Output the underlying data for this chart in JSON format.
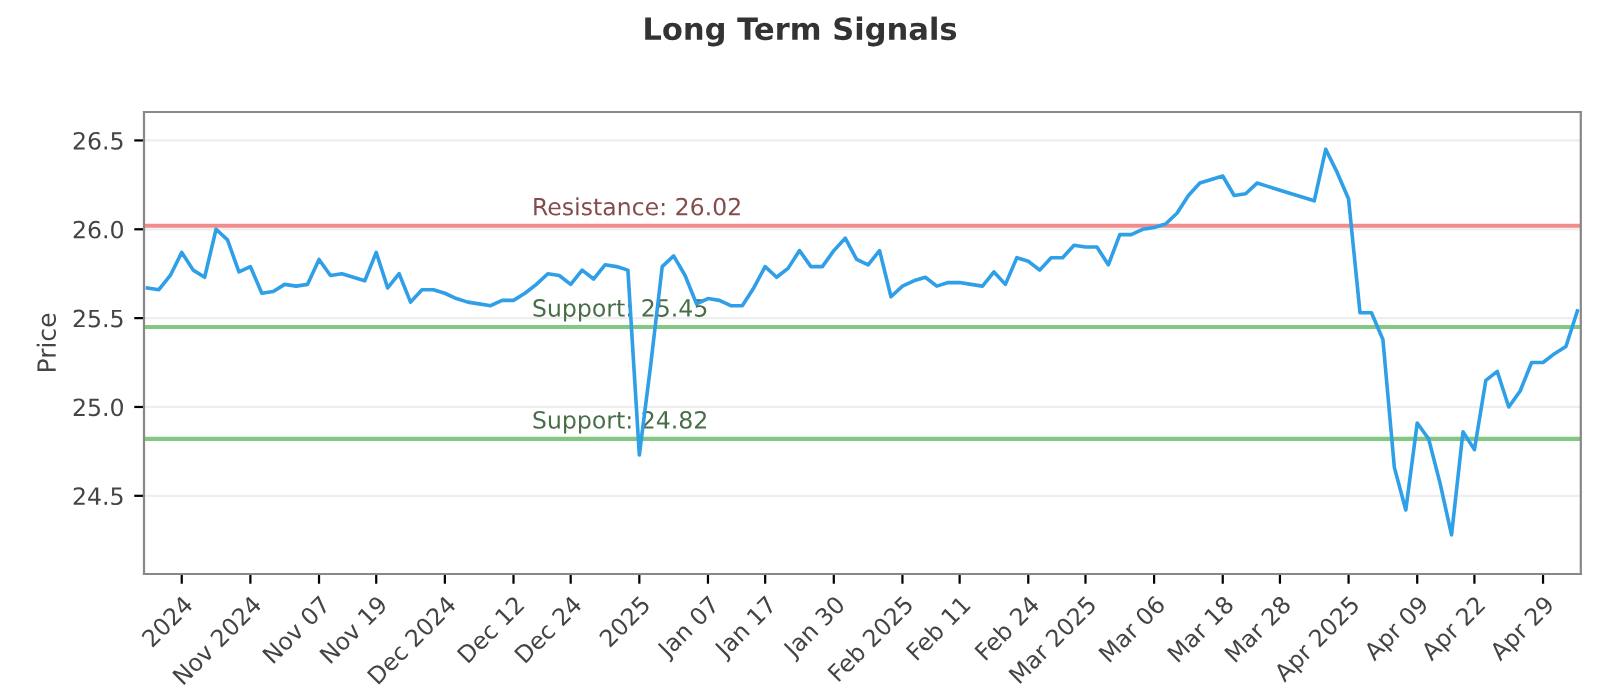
{
  "chart_data": {
    "type": "line",
    "title": "Long Term Signals",
    "ylabel": "Price",
    "categories": [
      null,
      null,
      null,
      "2024",
      null,
      null,
      null,
      null,
      null,
      "Nov 2024",
      null,
      null,
      null,
      null,
      null,
      "Nov 07",
      null,
      null,
      null,
      null,
      "Nov 19",
      null,
      null,
      null,
      null,
      null,
      "Dec 2024",
      null,
      null,
      null,
      null,
      null,
      "Dec 12",
      null,
      null,
      null,
      null,
      "Dec 24",
      null,
      null,
      null,
      null,
      null,
      "2025",
      null,
      null,
      null,
      null,
      null,
      "Jan 07",
      null,
      null,
      null,
      null,
      "Jan 17",
      null,
      null,
      null,
      null,
      null,
      "Jan 30",
      null,
      null,
      null,
      null,
      null,
      "Feb 2025",
      null,
      null,
      null,
      null,
      "Feb 11",
      null,
      null,
      null,
      null,
      null,
      "Feb 24",
      null,
      null,
      null,
      null,
      "Mar 2025",
      null,
      null,
      null,
      null,
      null,
      "Mar 06",
      null,
      null,
      null,
      null,
      null,
      "Mar 18",
      null,
      null,
      null,
      null,
      "Mar 28",
      null,
      null,
      null,
      null,
      null,
      "Apr 2025",
      null,
      null,
      null,
      null,
      null,
      "Apr 09",
      null,
      null,
      null,
      null,
      "Apr 22",
      null,
      null,
      null,
      null,
      null,
      "Apr 29",
      null,
      null,
      null
    ],
    "series": [
      {
        "color": "#2f9fe8",
        "values": [
          25.67,
          25.66,
          25.74,
          25.87,
          25.77,
          25.73,
          26.0,
          25.94,
          25.76,
          25.79,
          25.64,
          25.65,
          25.69,
          25.68,
          25.69,
          25.83,
          25.74,
          25.75,
          25.73,
          25.71,
          25.87,
          25.67,
          25.75,
          25.59,
          25.66,
          25.66,
          25.64,
          25.61,
          25.59,
          25.58,
          25.57,
          25.6,
          25.6,
          25.64,
          25.69,
          25.75,
          25.74,
          25.69,
          25.77,
          25.72,
          25.8,
          25.79,
          25.77,
          24.73,
          25.24,
          25.79,
          25.85,
          25.74,
          25.58,
          25.61,
          25.6,
          25.57,
          25.57,
          25.67,
          25.79,
          25.73,
          25.78,
          25.88,
          25.79,
          25.79,
          25.88,
          25.95,
          25.83,
          25.8,
          25.88,
          25.62,
          25.68,
          25.71,
          25.73,
          25.68,
          25.7,
          25.7,
          25.69,
          25.68,
          25.76,
          25.69,
          25.84,
          25.82,
          25.77,
          25.84,
          25.84,
          25.91,
          25.9,
          25.9,
          25.8,
          25.97,
          25.97,
          26.0,
          26.01,
          26.03,
          26.09,
          26.19,
          26.26,
          26.28,
          26.3,
          26.19,
          26.2,
          26.26,
          26.24,
          26.22,
          26.2,
          26.18,
          26.16,
          26.45,
          26.32,
          26.17,
          25.53,
          25.53,
          25.38,
          24.66,
          24.42,
          24.91,
          24.82,
          24.57,
          24.28,
          24.86,
          24.76,
          25.15,
          25.2,
          25.0,
          25.09,
          25.25,
          25.25,
          25.3,
          25.34,
          25.54
        ]
      }
    ],
    "ylim": [
      24.06,
      26.66
    ],
    "yticks": [
      24.5,
      {
        "value": 25,
        "label": "25.0"
      },
      25.5,
      {
        "value": 26,
        "label": "26.0"
      },
      26.5
    ],
    "ref_lines": [
      {
        "axis": "y",
        "value": 26.02,
        "label": "Resistance: 26.02",
        "color": "#f28b8b"
      },
      {
        "axis": "y",
        "value": 25.45,
        "label": "Support: 25.45",
        "color": "#82c882"
      },
      {
        "axis": "y",
        "value": 24.82,
        "label": "Support: 24.82",
        "color": "#82c882"
      }
    ],
    "grid": "y",
    "legend": false
  }
}
